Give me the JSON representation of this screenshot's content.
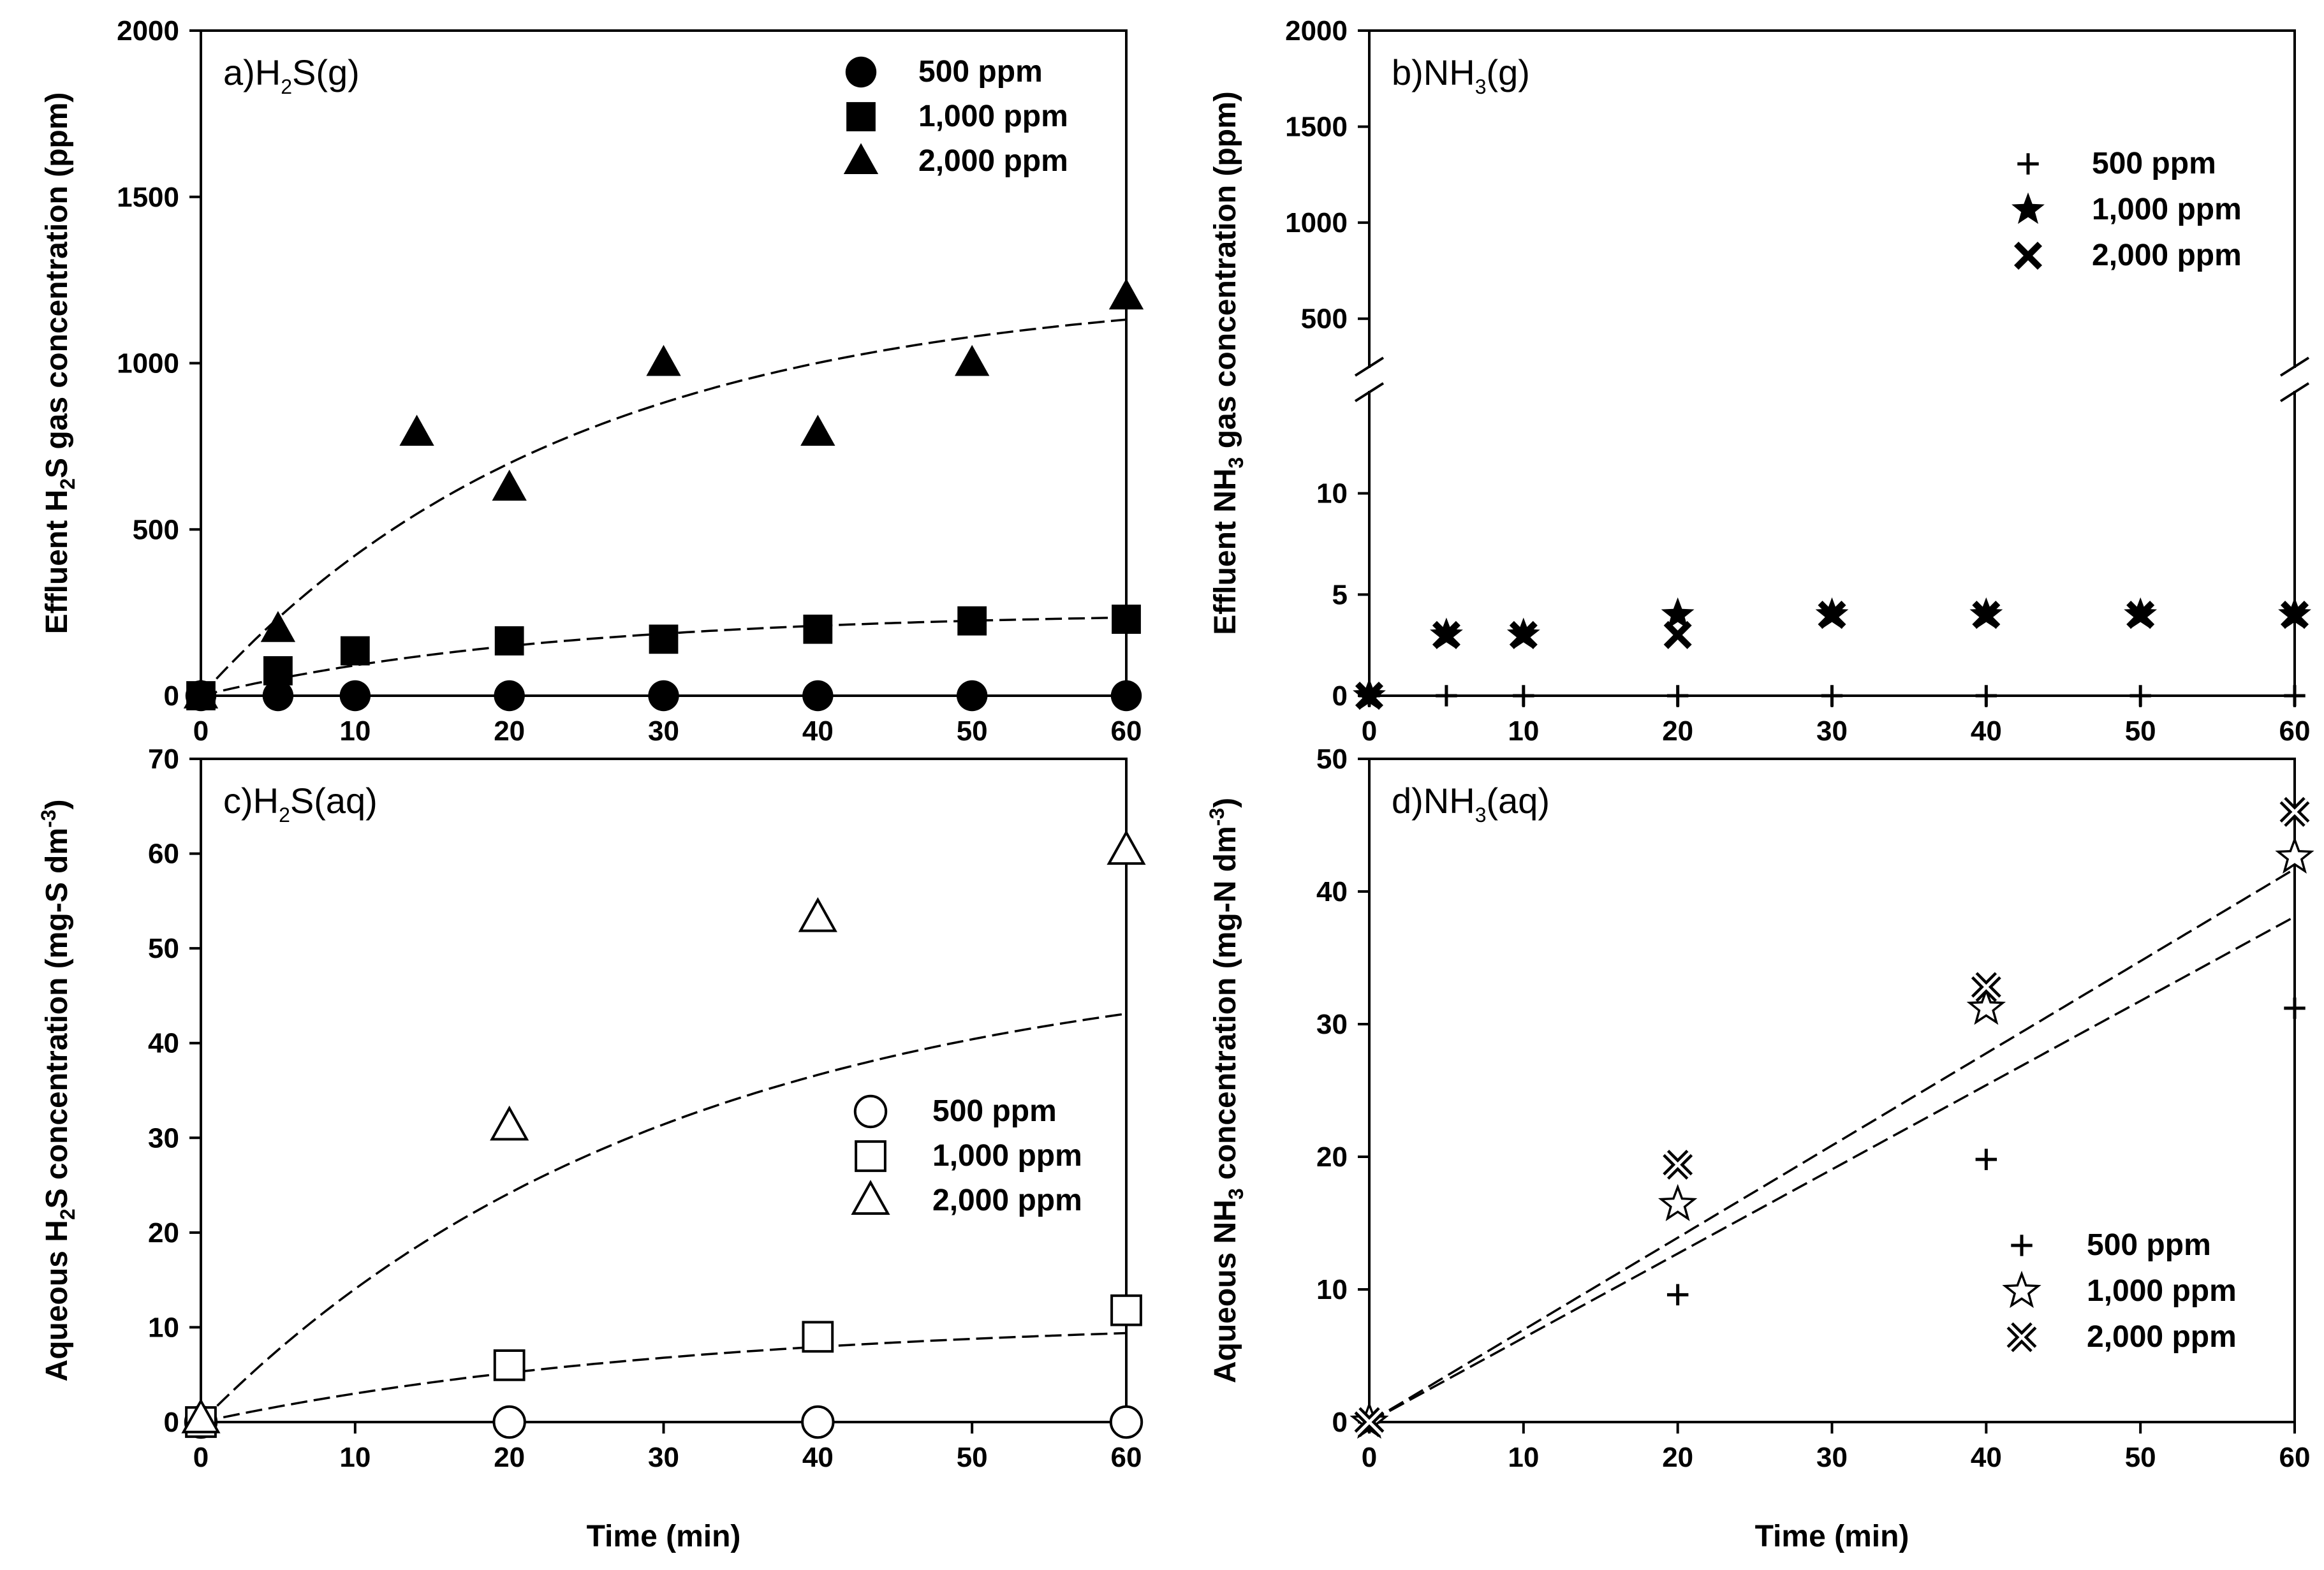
{
  "chart_data": [
    {
      "id": "a",
      "type": "scatter",
      "title_main": "a)H",
      "title_sub": "2",
      "title_tail": "S(g)",
      "ylabel_pre": "Effluent H",
      "ylabel_sub": "2",
      "ylabel_post": "S gas concentration (ppm)",
      "xlabel": "",
      "xlim": [
        0,
        60
      ],
      "ylim": [
        0,
        2000
      ],
      "xticks": [
        0,
        10,
        20,
        30,
        40,
        50,
        60
      ],
      "yticks": [
        0,
        500,
        1000,
        1500,
        2000
      ],
      "series": [
        {
          "name": "500 ppm",
          "marker": "circle",
          "filled": true,
          "x": [
            0,
            5,
            10,
            20,
            30,
            40,
            50,
            60
          ],
          "y": [
            0,
            0,
            0,
            0,
            0,
            0,
            0,
            0
          ]
        },
        {
          "name": "1,000 ppm",
          "marker": "square",
          "filled": true,
          "x": [
            0,
            5,
            10,
            20,
            30,
            40,
            50,
            60
          ],
          "y": [
            0,
            75,
            135,
            165,
            170,
            200,
            225,
            230
          ]
        },
        {
          "name": "2,000 ppm",
          "marker": "triangle",
          "filled": true,
          "x": [
            0,
            5,
            14,
            20,
            30,
            40,
            50,
            60
          ],
          "y": [
            0,
            200,
            790,
            625,
            1000,
            790,
            1000,
            1200
          ]
        }
      ],
      "fits": [
        {
          "a": 252,
          "k": 0.045
        },
        {
          "a": 1230,
          "k": 0.042
        }
      ]
    },
    {
      "id": "b",
      "type": "scatter",
      "title_main": "b)NH",
      "title_sub": "3",
      "title_tail": "(g)",
      "ylabel_pre": "Effluent NH",
      "ylabel_sub": "3",
      "ylabel_post": " gas concentration (ppm)",
      "xlabel": "",
      "xlim": [
        0,
        60
      ],
      "ylim_lower": [
        0,
        15
      ],
      "ylim_upper": [
        250,
        2000
      ],
      "yticks_lower": [
        0,
        5,
        10
      ],
      "yticks_upper": [
        500,
        1000,
        1500,
        2000
      ],
      "xticks": [
        0,
        10,
        20,
        30,
        40,
        50,
        60
      ],
      "series": [
        {
          "name": "500 ppm",
          "marker": "plus",
          "x": [
            0,
            5,
            10,
            20,
            30,
            40,
            50,
            60
          ],
          "y": [
            0,
            0,
            0,
            0,
            0,
            0,
            0,
            0
          ]
        },
        {
          "name": "1,000 ppm",
          "marker": "star",
          "x": [
            0,
            5,
            10,
            20,
            30,
            40,
            50,
            60
          ],
          "y": [
            0,
            3,
            3,
            4,
            4,
            4,
            4,
            4
          ]
        },
        {
          "name": "2,000 ppm",
          "marker": "x",
          "x": [
            0,
            5,
            10,
            20,
            30,
            40,
            50,
            60
          ],
          "y": [
            0,
            3,
            3,
            3,
            4,
            4,
            4,
            4
          ]
        }
      ]
    },
    {
      "id": "c",
      "type": "scatter",
      "title_main": "c)H",
      "title_sub": "2",
      "title_tail": "S(aq)",
      "ylabel_pre": "Aqueous H",
      "ylabel_sub": "2",
      "ylabel_post": "S concentration (mg-S dm",
      "ylabel_sup": "-3",
      "ylabel_end": ")",
      "xlabel": "Time (min)",
      "xlim": [
        0,
        60
      ],
      "ylim": [
        0,
        70
      ],
      "xticks": [
        0,
        10,
        20,
        30,
        40,
        50,
        60
      ],
      "yticks": [
        0,
        10,
        20,
        30,
        40,
        50,
        60,
        70
      ],
      "series": [
        {
          "name": "500 ppm",
          "marker": "circle",
          "filled": false,
          "x": [
            0,
            20,
            40,
            60
          ],
          "y": [
            0,
            0,
            0,
            0
          ]
        },
        {
          "name": "1,000 ppm",
          "marker": "square",
          "filled": false,
          "x": [
            0,
            20,
            40,
            60
          ],
          "y": [
            0,
            6,
            9,
            11.8
          ]
        },
        {
          "name": "2,000 ppm",
          "marker": "triangle",
          "filled": false,
          "x": [
            0,
            20,
            40,
            60
          ],
          "y": [
            0.3,
            31.2,
            53.2,
            60.3
          ]
        }
      ],
      "fits": [
        {
          "a": 11,
          "k": 0.032
        },
        {
          "a": 50,
          "k": 0.033
        }
      ]
    },
    {
      "id": "d",
      "type": "scatter",
      "title_main": "d)NH",
      "title_sub": "3",
      "title_tail": "(aq)",
      "ylabel_pre": "Aqueous NH",
      "ylabel_sub": "3",
      "ylabel_post": " concentration (mg-N dm",
      "ylabel_sup": "-3",
      "ylabel_end": ")",
      "xlabel": "Time (min)",
      "xlim": [
        0,
        60
      ],
      "ylim": [
        0,
        50
      ],
      "xticks": [
        0,
        10,
        20,
        30,
        40,
        50,
        60
      ],
      "yticks": [
        0,
        10,
        20,
        30,
        40,
        50
      ],
      "series": [
        {
          "name": "500 ppm",
          "marker": "plus",
          "x": [
            0,
            20,
            40,
            60
          ],
          "y": [
            0,
            9.6,
            19.8,
            31.2
          ]
        },
        {
          "name": "1,000 ppm",
          "marker": "star-open",
          "x": [
            0,
            20,
            40,
            60
          ],
          "y": [
            0,
            16.4,
            31.2,
            42.6
          ]
        },
        {
          "name": "2,000 ppm",
          "marker": "x-double",
          "x": [
            0,
            20,
            40,
            60
          ],
          "y": [
            0,
            19.4,
            32.8,
            46
          ]
        }
      ],
      "fits": [
        {
          "slope": 0.635
        },
        {
          "slope": 0.695
        }
      ]
    }
  ],
  "legend_labels": [
    "500 ppm",
    "1,000 ppm",
    "2,000 ppm"
  ]
}
